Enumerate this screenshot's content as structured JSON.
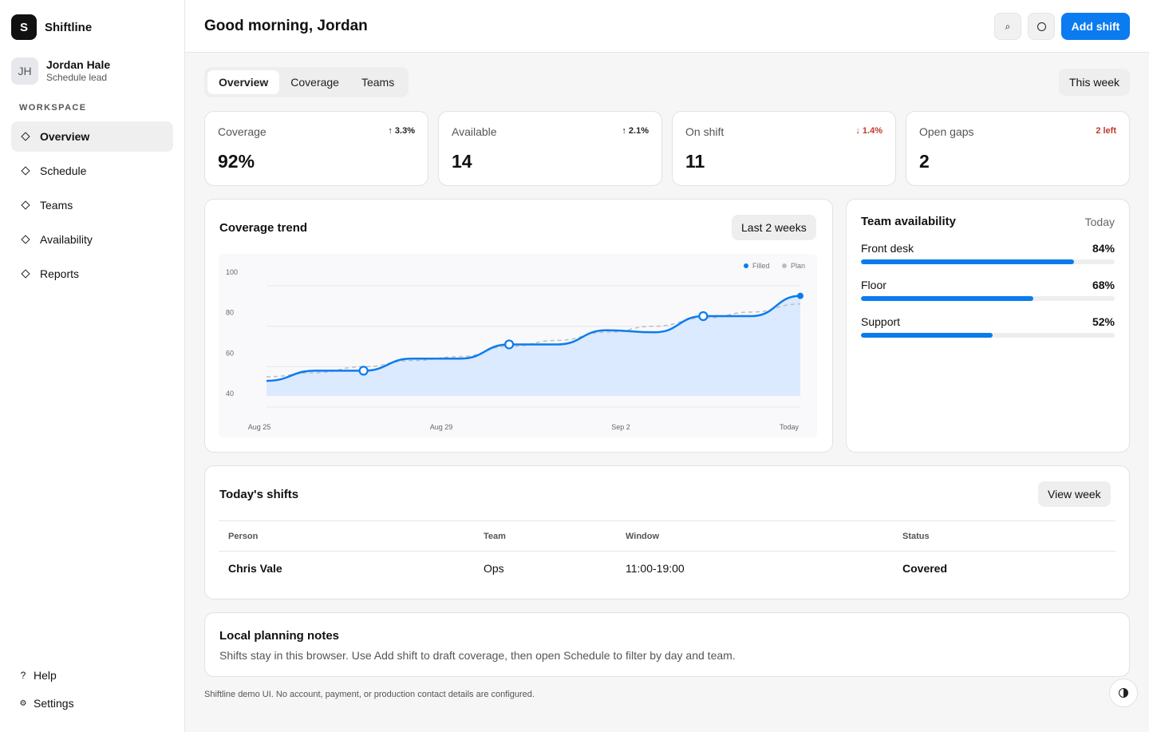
{
  "app": {
    "name": "Shiftline",
    "logo_letter": "S"
  },
  "user": {
    "initials": "JH",
    "name": "Jordan Hale",
    "role": "Schedule lead"
  },
  "sidebar": {
    "section_label": "WORKSPACE",
    "items": [
      {
        "label": "Overview",
        "icon": "diamond-icon",
        "active": true
      },
      {
        "label": "Schedule",
        "icon": "diamond-icon"
      },
      {
        "label": "Teams",
        "icon": "diamond-icon"
      },
      {
        "label": "Availability",
        "icon": "diamond-icon"
      },
      {
        "label": "Reports",
        "icon": "diamond-icon"
      }
    ],
    "help": {
      "label": "Help",
      "glyph": "?"
    },
    "settings": {
      "label": "Settings",
      "glyph": "⚙"
    }
  },
  "header": {
    "greeting": "Good morning, Jordan",
    "search_glyph": "⌕",
    "add_label": "Add shift",
    "accent": "#0b7bf0"
  },
  "tabs": {
    "items": [
      "Overview",
      "Coverage",
      "Teams"
    ],
    "active": "Overview",
    "range_label": "This week"
  },
  "stats": [
    {
      "label": "Coverage",
      "value": "92%",
      "delta": "↑ 3.3%",
      "direction": "up"
    },
    {
      "label": "Available",
      "value": "14",
      "delta": "↑ 2.1%",
      "direction": "up"
    },
    {
      "label": "On shift",
      "value": "11",
      "delta": "↓ 1.4%",
      "direction": "down"
    },
    {
      "label": "Open gaps",
      "value": "2",
      "delta": "2 left",
      "direction": "down"
    }
  ],
  "trend": {
    "title": "Coverage trend",
    "range_label": "Last 2 weeks",
    "legend": {
      "filled": "Filled",
      "plan": "Plan"
    }
  },
  "chart_data": {
    "type": "line",
    "x_ticks": [
      "Aug 25",
      "Aug 29",
      "Sep 2",
      "Today"
    ],
    "y_ticks": [
      "100",
      "80",
      "60",
      "40"
    ],
    "ylim": [
      40,
      100
    ],
    "series": [
      {
        "name": "Filled",
        "values": [
          53,
          58,
          58,
          64,
          64,
          71,
          71,
          78,
          77,
          85,
          85,
          95
        ],
        "color": "#0b7bf0",
        "fill": true
      },
      {
        "name": "Plan",
        "values": [
          55,
          57,
          60,
          63,
          65,
          70,
          73,
          77,
          80,
          84,
          87,
          91
        ],
        "color": "#bdbdbd",
        "dashed": true
      }
    ],
    "grid": true,
    "legend_position": "top-right"
  },
  "team_availability": {
    "title": "Team availability",
    "period": "Today",
    "teams": [
      {
        "name": "Front desk",
        "pct_label": "84%",
        "pct": 84
      },
      {
        "name": "Floor",
        "pct_label": "68%",
        "pct": 68
      },
      {
        "name": "Support",
        "pct_label": "52%",
        "pct": 52
      }
    ]
  },
  "shifts": {
    "title": "Today's shifts",
    "view_label": "View week",
    "columns": [
      "Person",
      "Team",
      "Window",
      "Status"
    ],
    "rows": [
      {
        "person": "Chris Vale",
        "team": "Ops",
        "window": "11:00-19:00",
        "status": "Covered"
      }
    ]
  },
  "notes": {
    "title": "Local planning notes",
    "text": "Shifts stay in this browser. Use Add shift to draft coverage, then open Schedule to filter by day and team."
  },
  "footer": {
    "disclaimer": "Shiftline demo UI. No account, payment, or production contact details are configured."
  }
}
